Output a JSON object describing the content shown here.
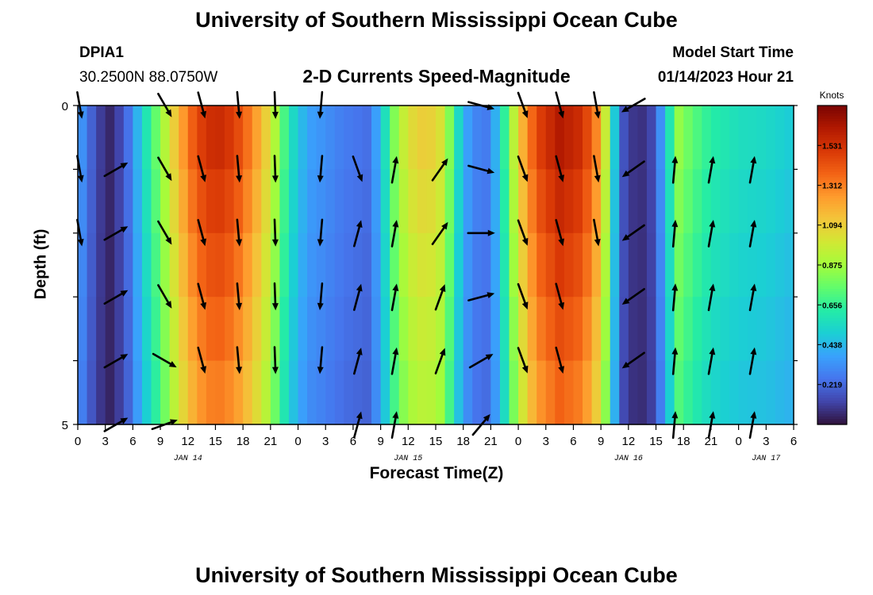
{
  "header": {
    "title": "University of Southern Mississippi Ocean Cube",
    "station_id": "DPIA1",
    "coordinates": "30.2500N  88.0750W",
    "model_start_label": "Model Start Time",
    "model_start_value": "01/14/2023 Hour 21"
  },
  "footer": {
    "title": "University of Southern Mississippi Ocean Cube"
  },
  "chart_data": {
    "type": "heatmap",
    "title": "2-D Currents Speed-Magnitude",
    "xlabel": "Forecast Time(Z)",
    "ylabel": "Depth (ft)",
    "x_hours": [
      0,
      3,
      6,
      9,
      12,
      15,
      18,
      21,
      24,
      27,
      30,
      33,
      36,
      39,
      42,
      45,
      48,
      51,
      54,
      57,
      60,
      63,
      66,
      69,
      72,
      75,
      78
    ],
    "x_tick_labels": [
      "0",
      "3",
      "6",
      "9",
      "12",
      "15",
      "18",
      "21",
      "0",
      "3",
      "6",
      "9",
      "12",
      "15",
      "18",
      "21",
      "0",
      "3",
      "6",
      "9",
      "12",
      "15",
      "18",
      "21",
      "0",
      "3",
      "6"
    ],
    "date_labels": [
      {
        "hour": 12,
        "text": "JAN 14"
      },
      {
        "hour": 36,
        "text": "JAN 15"
      },
      {
        "hour": 60,
        "text": "JAN 16"
      },
      {
        "hour": 75,
        "text": "JAN 17"
      }
    ],
    "xlim": [
      0,
      78
    ],
    "y_tick_labels": [
      {
        "depth": 0,
        "text": "0"
      },
      {
        "depth": 5,
        "text": "5"
      }
    ],
    "ylim": [
      0,
      5
    ],
    "colorbar": {
      "title": "Knots",
      "ticks": [
        "1.531",
        "1.312",
        "1.094",
        "0.875",
        "0.656",
        "0.438",
        "0.219"
      ],
      "tick_values": [
        1.531,
        1.312,
        1.094,
        0.875,
        0.656,
        0.438,
        0.219
      ],
      "range": [
        0,
        1.75
      ],
      "colormap": [
        "#30123b",
        "#4145ab",
        "#4675ed",
        "#39a2fc",
        "#1bcfd4",
        "#24eca6",
        "#61fc6c",
        "#a4fc3b",
        "#d1e834",
        "#f3c63a",
        "#fe9b2d",
        "#f36315",
        "#d93806",
        "#b11901",
        "#7a0402"
      ]
    },
    "speed_profile": [
      {
        "hour": 0,
        "speed": 0.35
      },
      {
        "hour": 1,
        "speed": 0.25
      },
      {
        "hour": 2,
        "speed": 0.12
      },
      {
        "hour": 3.5,
        "speed": 0.05
      },
      {
        "hour": 5,
        "speed": 0.15
      },
      {
        "hour": 6,
        "speed": 0.3
      },
      {
        "hour": 7,
        "speed": 0.48
      },
      {
        "hour": 8,
        "speed": 0.62
      },
      {
        "hour": 9.5,
        "speed": 0.85
      },
      {
        "hour": 11,
        "speed": 1.1
      },
      {
        "hour": 13,
        "speed": 1.35
      },
      {
        "hour": 15,
        "speed": 1.45
      },
      {
        "hour": 17,
        "speed": 1.38
      },
      {
        "hour": 19,
        "speed": 1.2
      },
      {
        "hour": 21,
        "speed": 0.95
      },
      {
        "hour": 22,
        "speed": 0.72
      },
      {
        "hour": 23.5,
        "speed": 0.5
      },
      {
        "hour": 25,
        "speed": 0.35
      },
      {
        "hour": 27,
        "speed": 0.3
      },
      {
        "hour": 29,
        "speed": 0.25
      },
      {
        "hour": 31.5,
        "speed": 0.22
      },
      {
        "hour": 33,
        "speed": 0.4
      },
      {
        "hour": 34,
        "speed": 0.65
      },
      {
        "hour": 35,
        "speed": 0.85
      },
      {
        "hour": 37,
        "speed": 1.02
      },
      {
        "hour": 39,
        "speed": 1.0
      },
      {
        "hour": 40,
        "speed": 0.9
      },
      {
        "hour": 41,
        "speed": 0.6
      },
      {
        "hour": 42,
        "speed": 0.4
      },
      {
        "hour": 43,
        "speed": 0.28
      },
      {
        "hour": 44.5,
        "speed": 0.25
      },
      {
        "hour": 46,
        "speed": 0.45
      },
      {
        "hour": 47,
        "speed": 0.75
      },
      {
        "hour": 48.5,
        "speed": 1.1
      },
      {
        "hour": 50,
        "speed": 1.35
      },
      {
        "hour": 52.5,
        "speed": 1.5
      },
      {
        "hour": 55,
        "speed": 1.42
      },
      {
        "hour": 56.5,
        "speed": 1.2
      },
      {
        "hour": 57.5,
        "speed": 0.9
      },
      {
        "hour": 58.5,
        "speed": 0.45
      },
      {
        "hour": 59.5,
        "speed": 0.15
      },
      {
        "hour": 61,
        "speed": 0.05
      },
      {
        "hour": 62.5,
        "speed": 0.12
      },
      {
        "hour": 63.5,
        "speed": 0.3
      },
      {
        "hour": 64.5,
        "speed": 0.55
      },
      {
        "hour": 65.5,
        "speed": 0.78
      },
      {
        "hour": 67,
        "speed": 0.68
      },
      {
        "hour": 69,
        "speed": 0.58
      },
      {
        "hour": 72,
        "speed": 0.52
      },
      {
        "hour": 75,
        "speed": 0.5
      },
      {
        "hour": 78,
        "speed": 0.45
      }
    ],
    "depth_factors": [
      1.08,
      1.04,
      1.0,
      0.96,
      0.92
    ],
    "arrows": [
      {
        "hour": 0.2,
        "direction_deg": 170,
        "depths": [
          0,
          1,
          2
        ]
      },
      {
        "hour": 4.2,
        "direction_deg": 60,
        "depths": [
          1,
          2,
          3,
          4,
          5
        ]
      },
      {
        "hour": 9.5,
        "direction_deg": 150,
        "depths": [
          0,
          1,
          2,
          3
        ]
      },
      {
        "hour": 9.5,
        "direction_deg": 120,
        "depths": [
          4
        ]
      },
      {
        "hour": 9.5,
        "direction_deg": 70,
        "depths": [
          5
        ]
      },
      {
        "hour": 13.5,
        "direction_deg": 165,
        "depths": [
          0,
          1,
          2,
          3,
          4
        ]
      },
      {
        "hour": 17.5,
        "direction_deg": 175,
        "depths": [
          0,
          1,
          2,
          3,
          4
        ]
      },
      {
        "hour": 21.5,
        "direction_deg": 178,
        "depths": [
          0,
          1,
          2,
          3,
          4
        ]
      },
      {
        "hour": 26.5,
        "direction_deg": 185,
        "depths": [
          0,
          1,
          2,
          3,
          4
        ]
      },
      {
        "hour": 30.5,
        "direction_deg": 160,
        "depths": [
          1
        ]
      },
      {
        "hour": 30.5,
        "direction_deg": 15,
        "depths": [
          2,
          3,
          4,
          5
        ]
      },
      {
        "hour": 34.5,
        "direction_deg": 10,
        "depths": [
          1,
          2,
          3,
          4,
          5
        ]
      },
      {
        "hour": 39.5,
        "direction_deg": 35,
        "depths": [
          1,
          2
        ]
      },
      {
        "hour": 39.5,
        "direction_deg": 20,
        "depths": [
          3,
          4
        ]
      },
      {
        "hour": 44,
        "direction_deg": 105,
        "depths": [
          0,
          1
        ]
      },
      {
        "hour": 44,
        "direction_deg": 90,
        "depths": [
          2
        ]
      },
      {
        "hour": 44,
        "direction_deg": 75,
        "depths": [
          3
        ]
      },
      {
        "hour": 44,
        "direction_deg": 60,
        "depths": [
          4
        ]
      },
      {
        "hour": 44,
        "direction_deg": 40,
        "depths": [
          5
        ]
      },
      {
        "hour": 48.5,
        "direction_deg": 160,
        "depths": [
          0,
          1,
          2,
          3,
          4
        ]
      },
      {
        "hour": 52.5,
        "direction_deg": 165,
        "depths": [
          0,
          1,
          2,
          3,
          4
        ]
      },
      {
        "hour": 56.5,
        "direction_deg": 170,
        "depths": [
          0,
          1,
          2
        ]
      },
      {
        "hour": 60.5,
        "direction_deg": 240,
        "depths": [
          0
        ]
      },
      {
        "hour": 60.5,
        "direction_deg": 235,
        "depths": [
          1,
          2,
          3,
          4
        ]
      },
      {
        "hour": 65,
        "direction_deg": 5,
        "depths": [
          1,
          2,
          3,
          4,
          5
        ]
      },
      {
        "hour": 69,
        "direction_deg": 10,
        "depths": [
          1,
          2,
          3,
          4,
          5
        ]
      },
      {
        "hour": 73.5,
        "direction_deg": 10,
        "depths": [
          1,
          2,
          3,
          4,
          5
        ]
      }
    ]
  }
}
